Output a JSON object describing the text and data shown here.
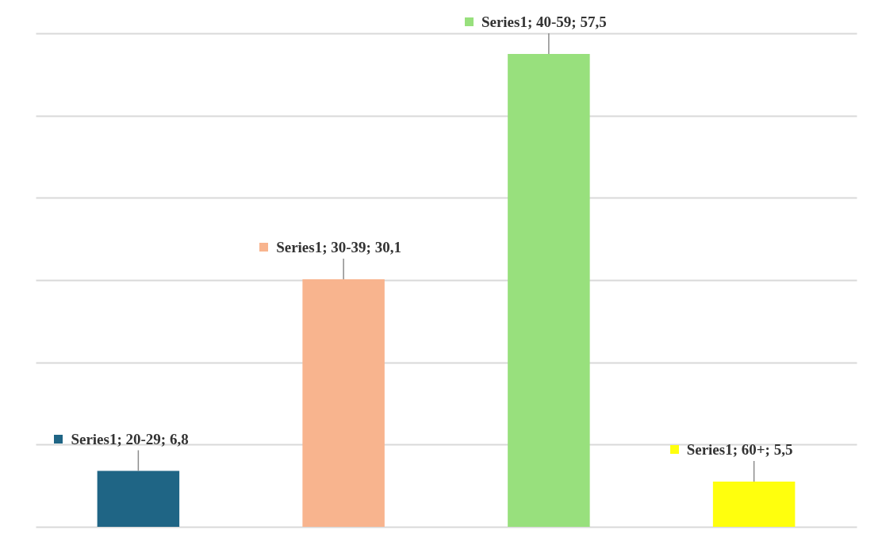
{
  "chart_data": {
    "type": "bar",
    "categories": [
      null,
      null,
      null,
      null
    ],
    "values": [
      6.8,
      30.1,
      57.5,
      5.5
    ],
    "colors": [
      "#1f6585",
      "#f8b48e",
      "#98e07d",
      "#ffff0d"
    ],
    "value_labels": [
      "Series1; 20-29; 6,8",
      "Series1; 30-39; 30,1",
      "Series1; 40-59; 57,5",
      "Series1; 60+; 5,5"
    ],
    "ylim": [
      0,
      60
    ],
    "yticks": [
      {
        "value": 0,
        "label": null
      },
      {
        "value": 10,
        "label": null
      },
      {
        "value": 20,
        "label": null
      },
      {
        "value": 30,
        "label": null
      },
      {
        "value": 40,
        "label": null
      },
      {
        "value": 50,
        "label": null
      },
      {
        "value": 60,
        "label": null
      }
    ],
    "grid": "y"
  }
}
